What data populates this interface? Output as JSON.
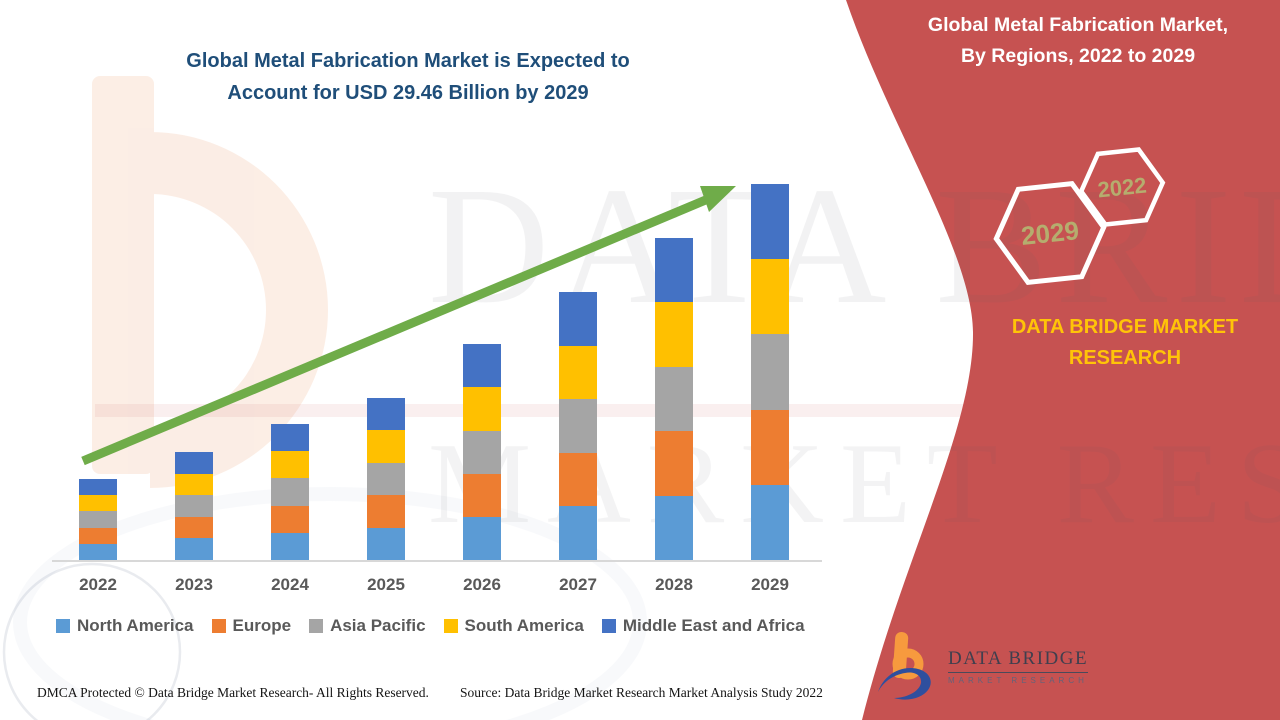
{
  "header": {
    "chart_title_line1": "Global Metal Fabrication Market is Expected to",
    "chart_title_line2": "Account for USD 29.46 Billion by 2029",
    "title_color": "#1f4e79"
  },
  "side_panel": {
    "title_line1": "Global Metal Fabrication Market,",
    "title_line2": "By Regions, 2022 to 2029",
    "hexagon_back_year": "2029",
    "hexagon_front_year": "2022",
    "hex_year_color": "#b5ad6e",
    "brand_text_line1": "DATA BRIDGE MARKET",
    "brand_text_line2": "RESEARCH",
    "brand_yellow": "#ffc408",
    "accent_red": "#c65251"
  },
  "logo": {
    "name_line": "DATA BRIDGE",
    "tagline": "MARKET RESEARCH"
  },
  "watermark": {
    "line1": "DATA BRIDGE",
    "line2": "MARKET RESEARCH"
  },
  "footer": {
    "dmca": "DMCA Protected © Data Bridge Market Research- All Rights Reserved.",
    "source": "Source: Data Bridge Market Research Market Analysis Study 2022"
  },
  "chart_data": {
    "type": "bar",
    "subtype": "stacked-vertical",
    "title": "Global Metal Fabrication Market is Expected to Account for USD 29.46 Billion by 2029",
    "value_unit": "USD Billion (estimated from bar heights; 2029 total anchored to 29.46)",
    "categories": [
      "2022",
      "2023",
      "2024",
      "2025",
      "2026",
      "2027",
      "2028",
      "2029"
    ],
    "series": [
      {
        "name": "North America",
        "color": "#5B9BD5",
        "values": [
          1.27,
          1.69,
          2.13,
          2.54,
          3.38,
          4.2,
          5.05,
          5.89
        ]
      },
      {
        "name": "Europe",
        "color": "#ED7D31",
        "values": [
          1.27,
          1.69,
          2.13,
          2.54,
          3.38,
          4.2,
          5.05,
          5.89
        ]
      },
      {
        "name": "Asia Pacific",
        "color": "#A5A5A5",
        "values": [
          1.27,
          1.69,
          2.13,
          2.54,
          3.38,
          4.2,
          5.05,
          5.89
        ]
      },
      {
        "name": "South America",
        "color": "#FFC000",
        "values": [
          1.27,
          1.69,
          2.13,
          2.54,
          3.38,
          4.2,
          5.05,
          5.89
        ]
      },
      {
        "name": "Middle East and Africa",
        "color": "#4472C4",
        "values": [
          1.27,
          1.69,
          2.13,
          2.54,
          3.38,
          4.2,
          5.05,
          5.89
        ]
      }
    ],
    "totals": [
      6.35,
      8.46,
      10.66,
      12.69,
      16.92,
      21.0,
      25.23,
      29.46
    ],
    "ylim": [
      0,
      29.46
    ],
    "grid": false,
    "axes_labeled": false,
    "legend_position": "bottom",
    "trend_arrow": true,
    "trend_color": "#6fac49"
  }
}
